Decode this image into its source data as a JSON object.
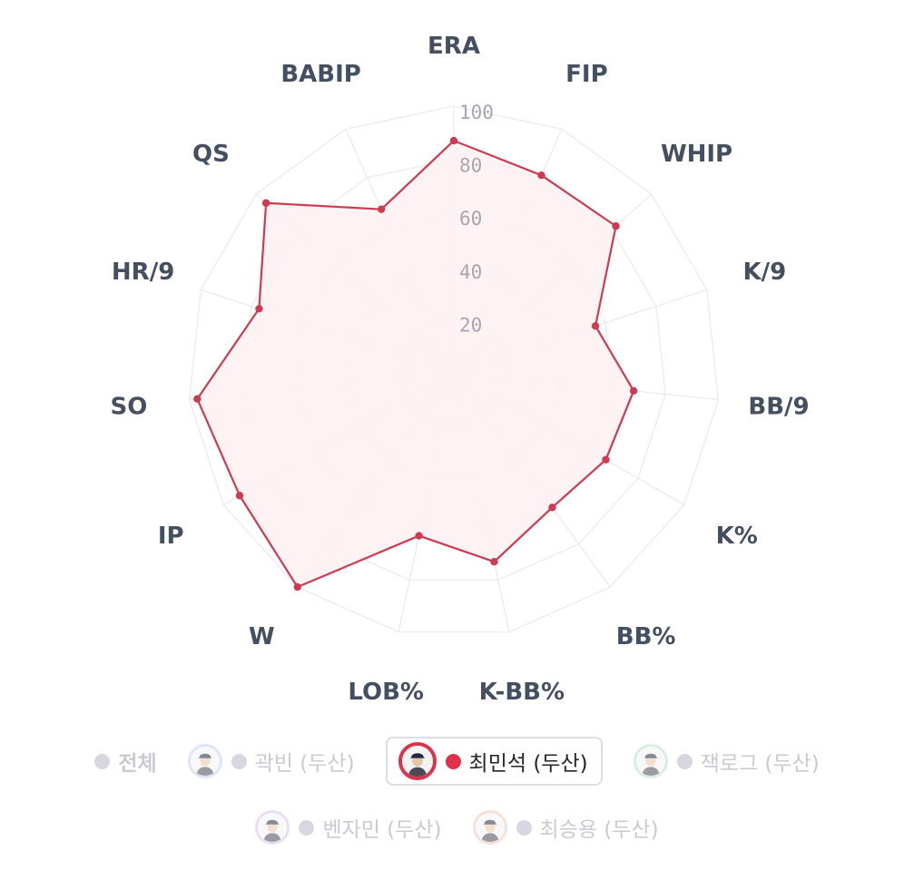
{
  "chart_data": {
    "type": "radar",
    "axes": [
      "ERA",
      "FIP",
      "WHIP",
      "K/9",
      "BB/9",
      "K%",
      "BB%",
      "K-BB%",
      "LOB%",
      "W",
      "IP",
      "SO",
      "HR/9",
      "QS",
      "BABIP"
    ],
    "ticks": [
      "20",
      "40",
      "60",
      "80",
      "100"
    ],
    "range": [
      0,
      100
    ],
    "series": [
      {
        "name": "최민석 (두산)",
        "color": "#cc3b50",
        "fill": "#fdf2f4",
        "values": [
          87,
          81,
          82,
          56,
          68,
          66,
          63,
          73,
          63,
          100,
          93,
          97,
          77,
          95,
          67
        ]
      }
    ],
    "legend": [
      {
        "label": "전체",
        "active": false,
        "avatar": false,
        "ring": ""
      },
      {
        "label": "곽빈 (두산)",
        "active": false,
        "avatar": true,
        "ring": "#c2d3f4"
      },
      {
        "label": "최민석 (두산)",
        "active": true,
        "avatar": true,
        "ring": "#d8344c"
      },
      {
        "label": "잭로그 (두산)",
        "active": false,
        "avatar": true,
        "ring": "#b9e2c5"
      },
      {
        "label": "벤자민 (두산)",
        "active": false,
        "avatar": true,
        "ring": "#dac4ec"
      },
      {
        "label": "최승용 (두산)",
        "active": false,
        "avatar": true,
        "ring": "#f4c7bd"
      }
    ]
  }
}
